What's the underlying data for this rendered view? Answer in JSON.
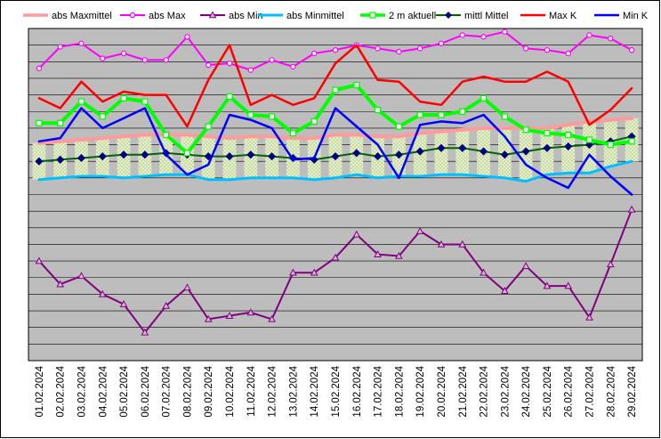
{
  "chart_data": {
    "type": "line",
    "title": "",
    "xlabel": "",
    "ylabel": "",
    "grid": true,
    "legend_position": "top",
    "x": [
      "01.02.2024",
      "02.02.2024",
      "03.02.2024",
      "04.02.2024",
      "05.02.2024",
      "06.02.2024",
      "07.02.2024",
      "08.02.2024",
      "09.02.2024",
      "10.02.2024",
      "11.02.2024",
      "12.02.2024",
      "13.02.2024",
      "14.02.2024",
      "15.02.2024",
      "16.02.2024",
      "17.02.2024",
      "18.02.2024",
      "19.02.2024",
      "20.02.2024",
      "21.02.2024",
      "22.02.2024",
      "23.02.2024",
      "24.02.2024",
      "25.02.2024",
      "26.02.2024",
      "27.02.2024",
      "28.02.2024",
      "29.02.2024"
    ],
    "ylim": [
      0,
      20
    ],
    "band_color": "#c8dca0",
    "series": [
      {
        "name": "abs Maxmittel",
        "color": "#ff9a9a",
        "marker": "none",
        "width": 4,
        "values": [
          13.1,
          13.2,
          13.3,
          13.4,
          13.5,
          13.6,
          13.6,
          13.6,
          13.5,
          13.4,
          13.5,
          13.5,
          13.4,
          13.4,
          13.6,
          13.6,
          13.5,
          13.5,
          13.7,
          13.8,
          13.9,
          14.0,
          14.0,
          14.0,
          14.0,
          14.2,
          14.4,
          14.5,
          14.6
        ]
      },
      {
        "name": "abs Max",
        "color": "#ff00ff",
        "marker": "circle",
        "width": 2,
        "values": [
          17.6,
          18.9,
          19.1,
          18.2,
          18.5,
          18.1,
          18.1,
          19.5,
          17.8,
          17.9,
          17.5,
          18.1,
          17.7,
          18.5,
          18.7,
          19.0,
          18.8,
          18.6,
          18.8,
          19.1,
          19.6,
          19.5,
          19.8,
          18.8,
          18.7,
          18.5,
          19.6,
          19.4,
          18.7
        ]
      },
      {
        "name": "abs Min",
        "color": "#800080",
        "marker": "triangle",
        "width": 2,
        "values": [
          6.0,
          4.6,
          5.1,
          4.0,
          3.4,
          1.7,
          3.3,
          4.4,
          2.5,
          2.7,
          2.9,
          2.5,
          5.3,
          5.3,
          6.2,
          7.6,
          6.4,
          6.3,
          7.8,
          7.0,
          7.0,
          5.3,
          4.2,
          5.7,
          4.5,
          4.5,
          2.6,
          5.8,
          9.1
        ]
      },
      {
        "name": "abs Minmittel",
        "color": "#00bfff",
        "marker": "none",
        "width": 3,
        "values": [
          10.9,
          11.0,
          11.1,
          11.1,
          11.0,
          11.1,
          11.2,
          11.2,
          10.9,
          10.9,
          11.0,
          11.0,
          11.0,
          10.9,
          11.0,
          11.2,
          11.0,
          11.1,
          11.1,
          11.2,
          11.2,
          11.1,
          11.0,
          10.8,
          11.2,
          11.3,
          11.3,
          11.7,
          12.0
        ]
      },
      {
        "name": "2 m aktuell",
        "color": "#00ff00",
        "marker": "square",
        "width": 4,
        "values": [
          14.3,
          14.3,
          15.6,
          14.7,
          15.8,
          15.6,
          13.6,
          12.5,
          14.1,
          15.9,
          14.8,
          14.7,
          13.7,
          14.4,
          16.3,
          16.6,
          15.1,
          14.1,
          14.8,
          14.8,
          15.0,
          15.8,
          14.7,
          13.9,
          13.7,
          13.6,
          13.3,
          13.0,
          13.2
        ]
      },
      {
        "name": "mittl Mittel",
        "color": "#006400",
        "marker": "diamond",
        "width": 2,
        "values": [
          12.0,
          12.1,
          12.2,
          12.3,
          12.4,
          12.4,
          12.5,
          12.4,
          12.3,
          12.3,
          12.4,
          12.3,
          12.2,
          12.1,
          12.3,
          12.5,
          12.3,
          12.4,
          12.6,
          12.8,
          12.8,
          12.6,
          12.4,
          12.6,
          12.8,
          12.9,
          13.0,
          13.2,
          13.5
        ]
      },
      {
        "name": "Max K",
        "color": "#ff0000",
        "marker": "none",
        "width": 2.5,
        "values": [
          15.8,
          15.2,
          16.8,
          15.6,
          16.2,
          16.0,
          16.0,
          14.1,
          16.9,
          19.0,
          15.4,
          16.0,
          15.4,
          15.8,
          17.9,
          19.0,
          16.9,
          16.8,
          15.6,
          15.4,
          16.8,
          17.1,
          16.8,
          16.8,
          17.4,
          16.8,
          14.2,
          15.1,
          16.4
        ]
      },
      {
        "name": "Min K",
        "color": "#0000ff",
        "marker": "none",
        "width": 2.5,
        "values": [
          13.2,
          13.4,
          15.2,
          14.0,
          14.6,
          15.2,
          12.4,
          11.2,
          11.8,
          14.8,
          14.5,
          14.0,
          12.1,
          12.2,
          15.2,
          14.1,
          13.0,
          11.0,
          14.2,
          14.4,
          14.3,
          14.8,
          13.5,
          11.8,
          11.0,
          10.4,
          12.4,
          11.1,
          10.0
        ]
      }
    ]
  }
}
